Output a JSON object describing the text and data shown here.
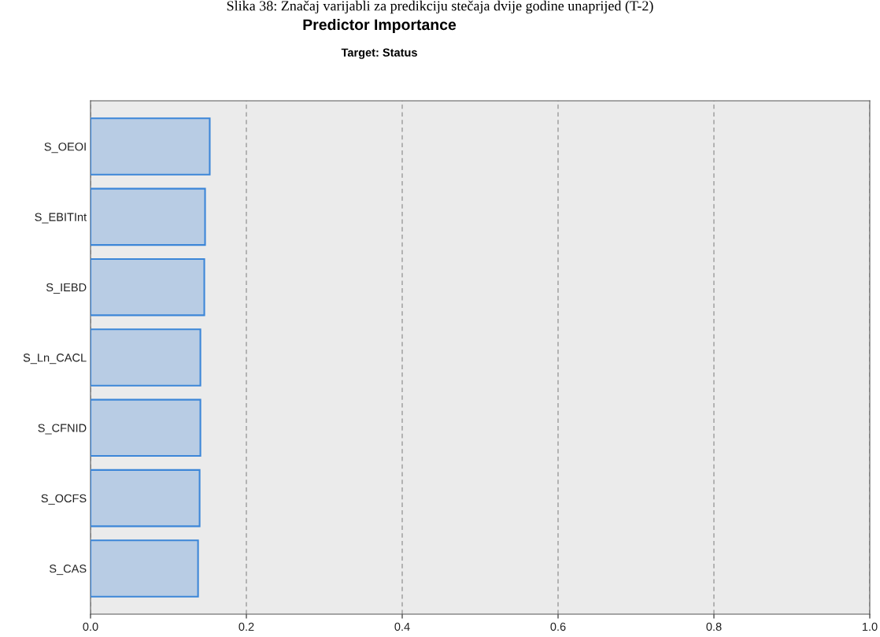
{
  "chart_data": {
    "type": "bar",
    "orientation": "horizontal",
    "title": "Predictor Importance",
    "subtitle": "Target: Status",
    "annotations": [
      "Slika 38: Značaj varijabli za predikciju stečaja dvije godine unaprijed (T-2)"
    ],
    "categories": [
      "S_OEOI",
      "S_EBITInt",
      "S_IEBD",
      "S_Ln_CACL",
      "S_CFNID",
      "S_OCFS",
      "S_CAS"
    ],
    "series": [
      {
        "color": "#b8cce4",
        "values": [
          0.153,
          0.147,
          0.146,
          0.141,
          0.141,
          0.14,
          0.138
        ]
      }
    ],
    "xlim": [
      0,
      1.0
    ],
    "xticks": [
      {
        "value": 0,
        "label": "0.0"
      },
      {
        "value": 0.2,
        "label": "0.2"
      },
      {
        "value": 0.4,
        "label": "0.4"
      },
      {
        "value": 0.6,
        "label": "0.6"
      },
      {
        "value": 0.8,
        "label": "0.8"
      },
      {
        "value": 1.0,
        "label": "1.0"
      }
    ],
    "grid": "x",
    "legend": false
  }
}
